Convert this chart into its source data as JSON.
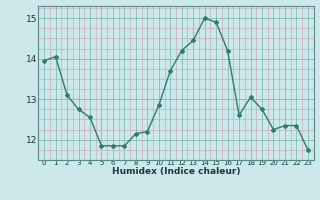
{
  "x": [
    0,
    1,
    2,
    3,
    4,
    5,
    6,
    7,
    8,
    9,
    10,
    11,
    12,
    13,
    14,
    15,
    16,
    17,
    18,
    19,
    20,
    21,
    22,
    23
  ],
  "y": [
    13.95,
    14.05,
    13.1,
    12.75,
    12.55,
    11.85,
    11.85,
    11.85,
    12.15,
    12.2,
    12.85,
    13.7,
    14.2,
    14.45,
    15.0,
    14.9,
    14.2,
    12.6,
    13.05,
    12.75,
    12.25,
    12.35,
    12.35,
    11.75
  ],
  "xlabel": "Humidex (Indice chaleur)",
  "ylim": [
    11.5,
    15.3
  ],
  "xlim": [
    -0.5,
    23.5
  ],
  "yticks": [
    12,
    13,
    14,
    15
  ],
  "xticks": [
    0,
    1,
    2,
    3,
    4,
    5,
    6,
    7,
    8,
    9,
    10,
    11,
    12,
    13,
    14,
    15,
    16,
    17,
    18,
    19,
    20,
    21,
    22,
    23
  ],
  "line_color": "#2e7d6e",
  "bg_color": "#cce8e8",
  "grid_color_major": "#b0cccc",
  "grid_color_minor": "#d4b0b0",
  "spine_color": "#5a8888"
}
